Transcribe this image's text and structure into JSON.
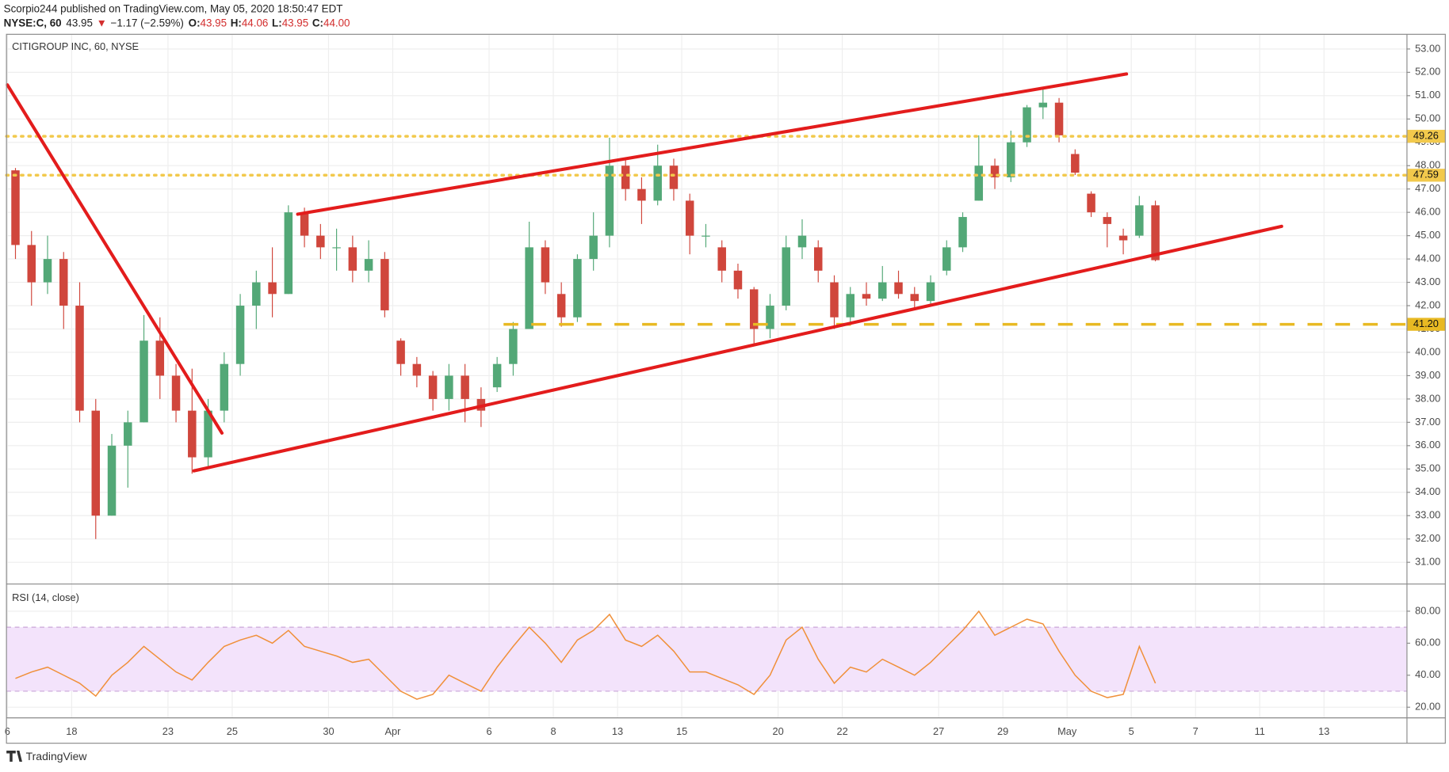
{
  "header": {
    "author_line": "Scorpio244 published on TradingView.com, May 05, 2020 18:50:47 EDT",
    "symbol": "NYSE:C, 60",
    "last": "43.95",
    "arrow": "▼",
    "change": "−1.17 (−2.59%)",
    "o_label": "O:",
    "o": "43.95",
    "h_label": "H:",
    "h": "44.06",
    "l_label": "L:",
    "l": "43.95",
    "c_label": "C:",
    "c": "44.00"
  },
  "footer": {
    "brand": "TradingView"
  },
  "chart_data": [
    {
      "type": "candlestick",
      "title": "CITIGROUP INC, 60, NYSE",
      "up_color": "#53a877",
      "down_color": "#d0463c",
      "xlim": [
        -0.03,
        43.57
      ],
      "ylim": [
        30.09,
        53.63
      ],
      "yticks": [
        {
          "value": 31,
          "label": "31.00"
        },
        {
          "value": 32,
          "label": "32.00"
        },
        {
          "value": 33,
          "label": "33.00"
        },
        {
          "value": 34,
          "label": "34.00"
        },
        {
          "value": 35,
          "label": "35.00"
        },
        {
          "value": 36,
          "label": "36.00"
        },
        {
          "value": 37,
          "label": "37.00"
        },
        {
          "value": 38,
          "label": "38.00"
        },
        {
          "value": 39,
          "label": "39.00"
        },
        {
          "value": 40,
          "label": "40.00"
        },
        {
          "value": 41,
          "label": "41.00"
        },
        {
          "value": 42,
          "label": "42.00"
        },
        {
          "value": 43,
          "label": "43.00"
        },
        {
          "value": 44,
          "label": "44.00"
        },
        {
          "value": 45,
          "label": "45.00"
        },
        {
          "value": 46,
          "label": "46.00"
        },
        {
          "value": 47,
          "label": "47.00"
        },
        {
          "value": 48,
          "label": "48.00"
        },
        {
          "value": 49,
          "label": "49.00"
        },
        {
          "value": 50,
          "label": "50.00"
        },
        {
          "value": 51,
          "label": "51.00"
        },
        {
          "value": 52,
          "label": "52.00"
        },
        {
          "value": 53,
          "label": "53.00"
        }
      ],
      "grid": true,
      "x": [
        0.25,
        0.75,
        1.25,
        1.75,
        2.25,
        2.75,
        3.25,
        3.75,
        4.25,
        4.75,
        5.25,
        5.75,
        6.25,
        6.75,
        7.25,
        7.75,
        8.25,
        8.75,
        9.25,
        9.75,
        10.25,
        10.75,
        11.25,
        11.75,
        12.25,
        12.75,
        13.25,
        13.75,
        14.25,
        14.75,
        15.25,
        15.75,
        16.25,
        16.75,
        17.25,
        17.75,
        18.25,
        18.75,
        19.25,
        19.75,
        20.25,
        20.75,
        21.25,
        21.75,
        22.25,
        22.75,
        23.25,
        23.75,
        24.25,
        24.75,
        25.25,
        25.75,
        26.25,
        26.75,
        27.25,
        27.75,
        28.25,
        28.75,
        29.25,
        29.75,
        30.25,
        30.75,
        31.25,
        31.75,
        32.25,
        32.75,
        33.25,
        33.75,
        34.25,
        34.75,
        35.25,
        35.75
      ],
      "open": [
        47.8,
        44.6,
        43.0,
        44.0,
        42.0,
        37.5,
        33.0,
        36.0,
        37.0,
        40.5,
        39.0,
        37.5,
        35.5,
        37.5,
        39.5,
        42.0,
        43.0,
        42.5,
        46.0,
        45.0,
        44.5,
        44.5,
        43.5,
        44.0,
        40.5,
        39.5,
        39.0,
        38.0,
        39.0,
        38.0,
        38.5,
        39.5,
        41.0,
        44.5,
        42.5,
        41.5,
        44.0,
        45.0,
        48.0,
        47.0,
        46.5,
        48.0,
        46.5,
        45.0,
        44.5,
        43.5,
        42.7,
        41.0,
        42.0,
        44.5,
        44.5,
        43.0,
        41.5,
        42.5,
        42.3,
        43.0,
        42.5,
        42.2,
        43.5,
        44.5,
        46.5,
        48.0,
        47.5,
        49.0,
        50.5,
        50.7,
        48.5,
        46.8,
        45.8,
        45.0,
        45.0,
        46.3
      ],
      "high": [
        47.9,
        45.2,
        45.0,
        44.3,
        43.0,
        38.0,
        36.5,
        37.5,
        41.6,
        41.5,
        39.5,
        39.3,
        38.0,
        40.0,
        42.5,
        43.5,
        44.5,
        46.3,
        46.2,
        45.5,
        45.3,
        45.0,
        44.8,
        44.3,
        40.6,
        39.8,
        39.2,
        39.5,
        39.5,
        38.5,
        39.8,
        41.3,
        45.6,
        44.8,
        43.0,
        44.2,
        46.0,
        49.2,
        48.3,
        47.5,
        48.9,
        48.3,
        46.8,
        45.5,
        44.8,
        43.8,
        42.8,
        42.5,
        45.0,
        45.7,
        44.8,
        43.3,
        42.8,
        43.0,
        43.7,
        43.5,
        42.8,
        43.3,
        44.8,
        46.0,
        49.3,
        48.3,
        49.5,
        50.6,
        51.3,
        50.9,
        48.7,
        46.9,
        46.0,
        45.3,
        46.7,
        46.5
      ],
      "low": [
        44.0,
        42.0,
        42.5,
        41.0,
        37.0,
        32.0,
        33.0,
        34.2,
        37.0,
        38.0,
        37.0,
        34.8,
        35.0,
        37.0,
        39.0,
        41.0,
        41.5,
        42.5,
        44.5,
        44.0,
        43.5,
        43.0,
        43.0,
        41.5,
        39.0,
        38.5,
        37.5,
        37.5,
        37.0,
        36.8,
        38.3,
        39.0,
        41.0,
        42.5,
        41.1,
        41.3,
        43.5,
        44.5,
        46.5,
        45.5,
        46.3,
        46.5,
        44.2,
        44.5,
        43.0,
        42.3,
        40.3,
        40.6,
        41.8,
        44.0,
        43.0,
        41.0,
        41.2,
        42.0,
        42.2,
        42.3,
        41.8,
        42.0,
        43.3,
        44.3,
        46.5,
        47.0,
        47.3,
        48.8,
        50.0,
        49.0,
        47.6,
        45.8,
        44.5,
        44.2,
        44.9,
        43.9
      ],
      "close": [
        44.6,
        43.0,
        44.0,
        42.0,
        37.5,
        33.0,
        36.0,
        37.0,
        40.5,
        39.0,
        37.5,
        35.5,
        37.5,
        39.5,
        42.0,
        43.0,
        42.5,
        46.0,
        45.0,
        44.5,
        44.5,
        43.5,
        44.0,
        41.8,
        39.5,
        39.0,
        38.0,
        39.0,
        38.0,
        37.5,
        39.5,
        41.0,
        44.5,
        43.0,
        41.5,
        44.0,
        45.0,
        48.0,
        47.0,
        46.5,
        48.0,
        47.0,
        45.0,
        45.0,
        43.5,
        42.7,
        41.0,
        42.0,
        44.5,
        45.0,
        43.5,
        41.5,
        42.5,
        42.3,
        43.0,
        42.5,
        42.2,
        43.0,
        44.5,
        45.8,
        48.0,
        47.5,
        49.0,
        50.5,
        50.7,
        49.3,
        47.7,
        46.0,
        45.5,
        44.8,
        46.3,
        43.95
      ],
      "levels": [
        {
          "price": 49.26,
          "label": "49.26",
          "style": "dotted",
          "color": "#f2c94c"
        },
        {
          "price": 47.59,
          "label": "47.59",
          "style": "dotted",
          "color": "#f2c94c"
        },
        {
          "price": 41.2,
          "label": "41.20",
          "style": "dashed",
          "color": "#e8b923",
          "from_x": 15.45
        }
      ],
      "trendline_color": "#e31c1c",
      "trendlines": [
        {
          "x": [
            0,
            6.68
          ],
          "y": [
            51.46,
            36.54
          ]
        },
        {
          "x": [
            5.81,
            39.68
          ],
          "y": [
            34.92,
            45.4
          ]
        },
        {
          "x": [
            9.04,
            34.85
          ],
          "y": [
            45.92,
            51.93
          ]
        }
      ]
    },
    {
      "type": "line",
      "title": "RSI (14, close)",
      "color": "#f0903a",
      "band": [
        30,
        70
      ],
      "band_color": "#f3e3fb",
      "band_line_color": "#c9a6d8",
      "xlim": [
        -0.03,
        43.57
      ],
      "ylim": [
        13.65,
        96.7
      ],
      "yticks": [
        {
          "value": 20,
          "label": "20.00"
        },
        {
          "value": 40,
          "label": "40.00"
        },
        {
          "value": 60,
          "label": "60.00"
        },
        {
          "value": 80,
          "label": "80.00"
        }
      ],
      "xticks": [
        {
          "value": 0,
          "label": "6"
        },
        {
          "value": 2,
          "label": "18"
        },
        {
          "value": 5,
          "label": "23"
        },
        {
          "value": 7,
          "label": "25"
        },
        {
          "value": 10,
          "label": "30"
        },
        {
          "value": 12,
          "label": "Apr"
        },
        {
          "value": 15,
          "label": "6"
        },
        {
          "value": 17,
          "label": "8"
        },
        {
          "value": 19,
          "label": "13"
        },
        {
          "value": 21,
          "label": "15"
        },
        {
          "value": 24,
          "label": "20"
        },
        {
          "value": 26,
          "label": "22"
        },
        {
          "value": 29,
          "label": "27"
        },
        {
          "value": 31,
          "label": "29"
        },
        {
          "value": 33,
          "label": "May"
        },
        {
          "value": 35,
          "label": "5"
        },
        {
          "value": 37,
          "label": "7"
        },
        {
          "value": 39,
          "label": "11"
        },
        {
          "value": 41,
          "label": "13"
        }
      ],
      "x": [
        0.25,
        0.75,
        1.25,
        1.75,
        2.25,
        2.75,
        3.25,
        3.75,
        4.25,
        4.75,
        5.25,
        5.75,
        6.25,
        6.75,
        7.25,
        7.75,
        8.25,
        8.75,
        9.25,
        9.75,
        10.25,
        10.75,
        11.25,
        11.75,
        12.25,
        12.75,
        13.25,
        13.75,
        14.25,
        14.75,
        15.25,
        15.75,
        16.25,
        16.75,
        17.25,
        17.75,
        18.25,
        18.75,
        19.25,
        19.75,
        20.25,
        20.75,
        21.25,
        21.75,
        22.25,
        22.75,
        23.25,
        23.75,
        24.25,
        24.75,
        25.25,
        25.75,
        26.25,
        26.75,
        27.25,
        27.75,
        28.25,
        28.75,
        29.25,
        29.75,
        30.25,
        30.75,
        31.25,
        31.75,
        32.25,
        32.75,
        33.25,
        33.75,
        34.25,
        34.75,
        35.25,
        35.75
      ],
      "values": [
        38,
        42,
        45,
        40,
        35,
        27,
        40,
        48,
        58,
        50,
        42,
        37,
        48,
        58,
        62,
        65,
        60,
        68,
        58,
        55,
        52,
        48,
        50,
        40,
        30,
        25,
        28,
        40,
        35,
        30,
        45,
        58,
        70,
        60,
        48,
        62,
        68,
        78,
        62,
        58,
        65,
        55,
        42,
        42,
        38,
        34,
        28,
        40,
        62,
        70,
        50,
        35,
        45,
        42,
        50,
        45,
        40,
        48,
        58,
        68,
        80,
        65,
        70,
        75,
        72,
        55,
        40,
        30,
        26,
        28,
        58,
        35
      ]
    }
  ]
}
